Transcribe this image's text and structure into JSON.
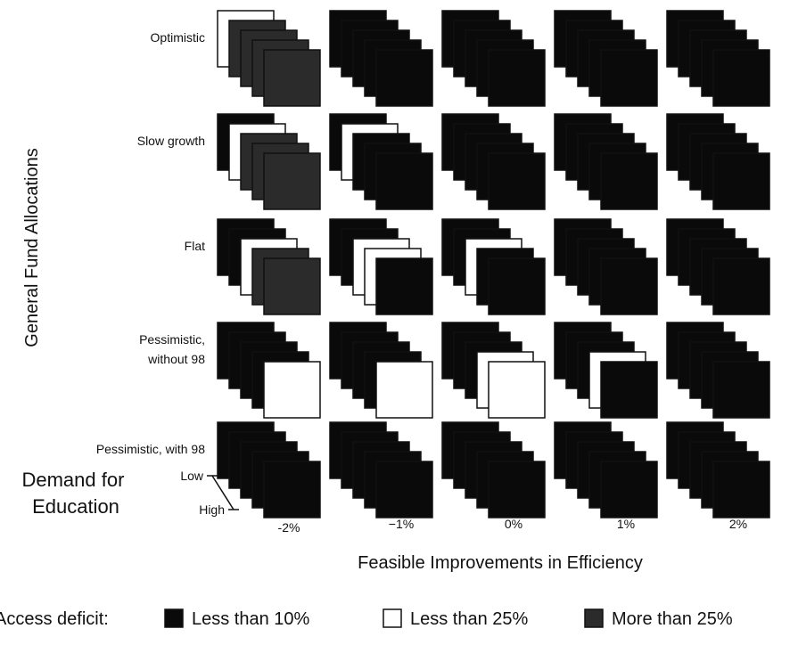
{
  "chart_data": {
    "type": "3d-grid",
    "xlabel": "Feasible Improvements in Efficiency",
    "ylabel": "General Fund Allocations",
    "zlabel": "Demand for Education",
    "x_categories": [
      "-2%",
      "−1%",
      "0%",
      "1%",
      "2%"
    ],
    "y_categories": [
      [
        "Optimistic"
      ],
      [
        "Slow growth"
      ],
      [
        "Flat"
      ],
      [
        "Pessimistic,",
        "without 98"
      ],
      [
        "Pessimistic, with 98"
      ]
    ],
    "z_categories": [
      "Low",
      "High"
    ],
    "z_levels": 5,
    "legend": {
      "title": "Access deficit:",
      "items": [
        {
          "key": "lt10",
          "label": "Less than 10%",
          "color": "#0a0a0a"
        },
        {
          "key": "lt25",
          "label": "Less than 25%",
          "color": "#ffffff"
        },
        {
          "key": "gt25",
          "label": "More than 25%",
          "color": "#2b2b2b"
        }
      ]
    },
    "cells": [
      [
        "lt25",
        "gt25",
        "gt25",
        "gt25",
        "gt25"
      ],
      [
        "lt10",
        "lt10",
        "lt10",
        "lt10",
        "lt10"
      ],
      [
        "lt10",
        "lt10",
        "lt10",
        "lt10",
        "lt10"
      ],
      [
        "lt10",
        "lt10",
        "lt10",
        "lt10",
        "lt10"
      ],
      [
        "lt10",
        "lt10",
        "lt10",
        "lt10",
        "lt10"
      ],
      [
        "lt10",
        "lt25",
        "gt25",
        "gt25",
        "gt25"
      ],
      [
        "lt10",
        "lt25",
        "lt10",
        "lt10",
        "lt10"
      ],
      [
        "lt10",
        "lt10",
        "lt10",
        "lt10",
        "lt10"
      ],
      [
        "lt10",
        "lt10",
        "lt10",
        "lt10",
        "lt10"
      ],
      [
        "lt10",
        "lt10",
        "lt10",
        "lt10",
        "lt10"
      ],
      [
        "lt10",
        "lt10",
        "lt25",
        "gt25",
        "gt25"
      ],
      [
        "lt10",
        "lt10",
        "lt25",
        "lt25",
        "lt10"
      ],
      [
        "lt10",
        "lt10",
        "lt25",
        "lt10",
        "lt10"
      ],
      [
        "lt10",
        "lt10",
        "lt10",
        "lt10",
        "lt10"
      ],
      [
        "lt10",
        "lt10",
        "lt10",
        "lt10",
        "lt10"
      ],
      [
        "lt10",
        "lt10",
        "lt10",
        "lt10",
        "lt25"
      ],
      [
        "lt10",
        "lt10",
        "lt10",
        "lt10",
        "lt25"
      ],
      [
        "lt10",
        "lt10",
        "lt10",
        "lt25",
        "lt25"
      ],
      [
        "lt10",
        "lt10",
        "lt10",
        "lt25",
        "lt10"
      ],
      [
        "lt10",
        "lt10",
        "lt10",
        "lt10",
        "lt10"
      ],
      [
        "lt10",
        "lt10",
        "lt10",
        "lt10",
        "lt10"
      ],
      [
        "lt10",
        "lt10",
        "lt10",
        "lt10",
        "lt10"
      ],
      [
        "lt10",
        "lt10",
        "lt10",
        "lt10",
        "lt10"
      ],
      [
        "lt10",
        "lt10",
        "lt10",
        "lt10",
        "lt10"
      ],
      [
        "lt10",
        "lt10",
        "lt10",
        "lt10",
        "lt10"
      ]
    ]
  }
}
